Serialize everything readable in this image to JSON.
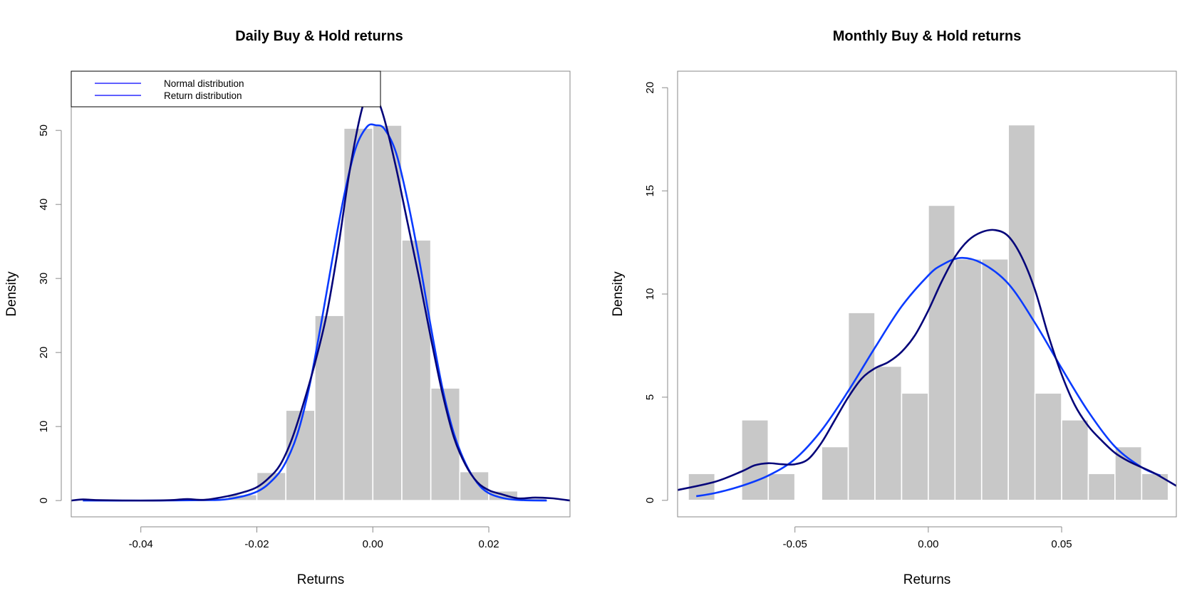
{
  "colors": {
    "bar_fill": "#c8c8c8",
    "bar_stroke": "#ffffff",
    "normal_curve": "#0b3bff",
    "density_curve": "#05057a",
    "legend_line": "#2b2bff",
    "frame": "#8a8a8a",
    "background": "#ffffff"
  },
  "chart_data": [
    {
      "type": "bar",
      "title": "Daily Buy & Hold returns",
      "xlabel": "Returns",
      "ylabel": "Density",
      "xlim": [
        -0.052,
        0.034
      ],
      "ylim": [
        -2.2,
        58
      ],
      "xticks": [
        -0.04,
        -0.02,
        0.0,
        0.02
      ],
      "xtick_labels": [
        "-0.04",
        "-0.02",
        "0.00",
        "0.02"
      ],
      "yticks": [
        0,
        10,
        20,
        30,
        40,
        50
      ],
      "ytick_labels": [
        "0",
        "10",
        "20",
        "30",
        "40",
        "50"
      ],
      "bins": [
        {
          "x0": -0.025,
          "x1": -0.02,
          "density": 0.8
        },
        {
          "x0": -0.02,
          "x1": -0.015,
          "density": 3.8
        },
        {
          "x0": -0.015,
          "x1": -0.01,
          "density": 12.2
        },
        {
          "x0": -0.01,
          "x1": -0.005,
          "density": 25.0
        },
        {
          "x0": -0.005,
          "x1": 0.0,
          "density": 50.3
        },
        {
          "x0": 0.0,
          "x1": 0.005,
          "density": 50.7
        },
        {
          "x0": 0.005,
          "x1": 0.01,
          "density": 35.2
        },
        {
          "x0": 0.01,
          "x1": 0.015,
          "density": 15.2
        },
        {
          "x0": 0.015,
          "x1": 0.02,
          "density": 3.9
        },
        {
          "x0": 0.02,
          "x1": 0.025,
          "density": 1.3
        },
        {
          "x0": 0.025,
          "x1": 0.03,
          "density": 0.3
        }
      ],
      "series": [
        {
          "name": "Normal distribution",
          "color": "#0b3bff",
          "x": [
            -0.05,
            -0.04,
            -0.03,
            -0.025,
            -0.02,
            -0.017,
            -0.015,
            -0.013,
            -0.011,
            -0.009,
            -0.007,
            -0.005,
            -0.003,
            -0.001,
            0.0005,
            0.002,
            0.004,
            0.006,
            0.008,
            0.01,
            0.012,
            0.014,
            0.016,
            0.018,
            0.02,
            0.023,
            0.026,
            0.03
          ],
          "y": [
            0,
            0,
            0.05,
            0.2,
            1.2,
            3.0,
            5.2,
            9.0,
            15.2,
            23.5,
            32.5,
            41.0,
            47.5,
            50.5,
            50.7,
            50.2,
            47.0,
            40.5,
            32.5,
            23.5,
            15.2,
            9.0,
            5.0,
            2.4,
            1.0,
            0.25,
            0.05,
            0
          ]
        },
        {
          "name": "Return distribution",
          "color": "#05057a",
          "x": [
            -0.052,
            -0.05,
            -0.047,
            -0.04,
            -0.035,
            -0.032,
            -0.029,
            -0.025,
            -0.022,
            -0.02,
            -0.018,
            -0.016,
            -0.014,
            -0.012,
            -0.01,
            -0.008,
            -0.006,
            -0.004,
            -0.002,
            -0.0005,
            0.0005,
            0.002,
            0.004,
            0.006,
            0.008,
            0.01,
            0.012,
            0.014,
            0.016,
            0.018,
            0.02,
            0.022,
            0.025,
            0.028,
            0.031,
            0.034
          ],
          "y": [
            0,
            0.15,
            0.05,
            0,
            0.05,
            0.2,
            0.1,
            0.6,
            1.2,
            1.8,
            3.0,
            4.8,
            8.2,
            13.0,
            18.5,
            25.0,
            34.0,
            44.5,
            52.5,
            55.5,
            54.8,
            51.5,
            45.0,
            37.5,
            30.0,
            22.0,
            14.5,
            8.5,
            4.8,
            2.5,
            1.4,
            0.9,
            0.3,
            0.4,
            0.3,
            0
          ]
        }
      ],
      "legend": {
        "position": "top-left",
        "entries": [
          "Normal distribution",
          "Return distribution"
        ]
      }
    },
    {
      "type": "bar",
      "title": "Monthly Buy & Hold returns",
      "xlabel": "Returns",
      "ylabel": "Density",
      "xlim": [
        -0.094,
        0.093
      ],
      "ylim": [
        -0.8,
        20.8
      ],
      "xticks": [
        -0.05,
        0.0,
        0.05
      ],
      "xtick_labels": [
        "-0.05",
        "0.00",
        "0.05"
      ],
      "yticks": [
        0,
        5,
        10,
        15,
        20
      ],
      "ytick_labels": [
        "0",
        "5",
        "10",
        "15",
        "20"
      ],
      "bins": [
        {
          "x0": -0.09,
          "x1": -0.08,
          "density": 1.3
        },
        {
          "x0": -0.08,
          "x1": -0.07,
          "density": 0
        },
        {
          "x0": -0.07,
          "x1": -0.06,
          "density": 3.9
        },
        {
          "x0": -0.06,
          "x1": -0.05,
          "density": 1.3
        },
        {
          "x0": -0.05,
          "x1": -0.04,
          "density": 0
        },
        {
          "x0": -0.04,
          "x1": -0.03,
          "density": 2.6
        },
        {
          "x0": -0.03,
          "x1": -0.02,
          "density": 9.1
        },
        {
          "x0": -0.02,
          "x1": -0.01,
          "density": 6.5
        },
        {
          "x0": -0.01,
          "x1": 0.0,
          "density": 5.2
        },
        {
          "x0": 0.0,
          "x1": 0.01,
          "density": 14.3
        },
        {
          "x0": 0.01,
          "x1": 0.02,
          "density": 11.7
        },
        {
          "x0": 0.02,
          "x1": 0.03,
          "density": 11.7
        },
        {
          "x0": 0.03,
          "x1": 0.04,
          "density": 18.2
        },
        {
          "x0": 0.04,
          "x1": 0.05,
          "density": 5.2
        },
        {
          "x0": 0.05,
          "x1": 0.06,
          "density": 3.9
        },
        {
          "x0": 0.06,
          "x1": 0.07,
          "density": 1.3
        },
        {
          "x0": 0.07,
          "x1": 0.08,
          "density": 2.6
        },
        {
          "x0": 0.08,
          "x1": 0.09,
          "density": 1.3
        }
      ],
      "series": [
        {
          "name": "Normal distribution",
          "color": "#0b3bff",
          "x": [
            -0.087,
            -0.08,
            -0.07,
            -0.06,
            -0.05,
            -0.04,
            -0.03,
            -0.02,
            -0.01,
            0.0,
            0.005,
            0.012,
            0.02,
            0.03,
            0.04,
            0.05,
            0.06,
            0.07,
            0.08,
            0.087
          ],
          "y": [
            0.2,
            0.35,
            0.7,
            1.2,
            2.0,
            3.4,
            5.3,
            7.4,
            9.4,
            10.9,
            11.4,
            11.75,
            11.5,
            10.5,
            8.6,
            6.4,
            4.3,
            2.6,
            1.6,
            1.2
          ]
        },
        {
          "name": "Return distribution",
          "color": "#05057a",
          "x": [
            -0.094,
            -0.08,
            -0.07,
            -0.065,
            -0.06,
            -0.055,
            -0.05,
            -0.045,
            -0.04,
            -0.035,
            -0.03,
            -0.025,
            -0.02,
            -0.015,
            -0.01,
            -0.005,
            0.0,
            0.005,
            0.01,
            0.015,
            0.02,
            0.025,
            0.03,
            0.035,
            0.04,
            0.045,
            0.05,
            0.055,
            0.06,
            0.065,
            0.07,
            0.075,
            0.08,
            0.085,
            0.093
          ],
          "y": [
            0.5,
            0.9,
            1.4,
            1.7,
            1.8,
            1.75,
            1.75,
            2.0,
            2.8,
            3.9,
            5.0,
            5.9,
            6.4,
            6.7,
            7.2,
            8.0,
            9.2,
            10.6,
            11.8,
            12.6,
            13.0,
            13.1,
            12.8,
            11.8,
            10.2,
            8.0,
            6.1,
            4.6,
            3.6,
            2.9,
            2.3,
            1.9,
            1.6,
            1.3,
            0.7
          ]
        }
      ]
    }
  ]
}
